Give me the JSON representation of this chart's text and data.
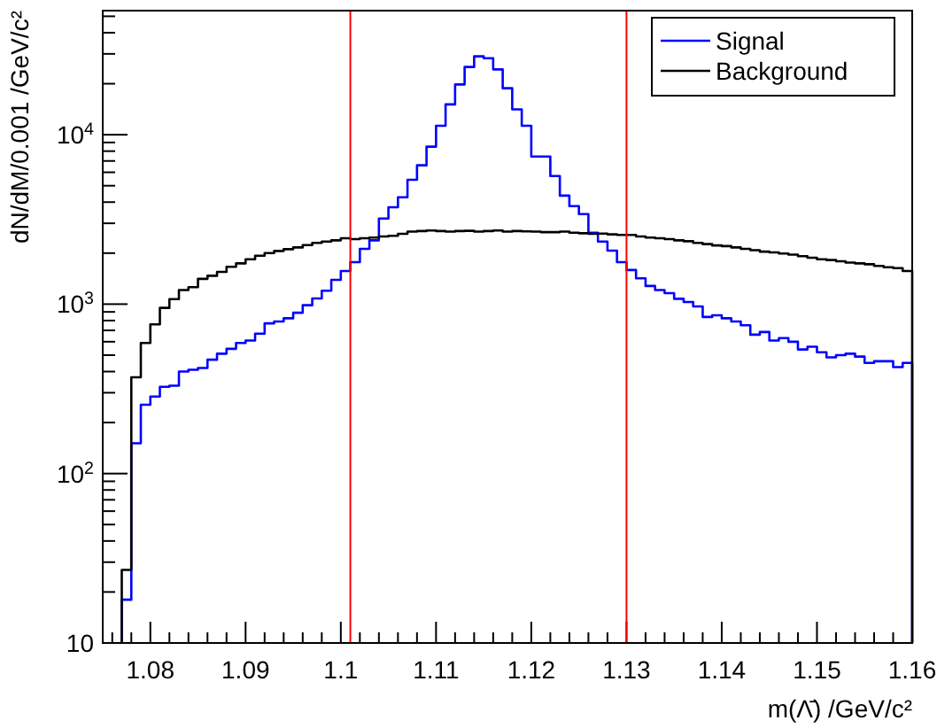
{
  "chart_data": {
    "type": "histogram",
    "xlabel": "m(Λ̄) /GeV/c²",
    "ylabel": "dN/dM/0.001 /GeV/c²",
    "bins": [
      1.077,
      1.078,
      1.079,
      1.08,
      1.081,
      1.082,
      1.083,
      1.084,
      1.085,
      1.086,
      1.087,
      1.088,
      1.089,
      1.09,
      1.091,
      1.092,
      1.093,
      1.094,
      1.095,
      1.096,
      1.097,
      1.098,
      1.099,
      1.1,
      1.101,
      1.102,
      1.103,
      1.104,
      1.105,
      1.106,
      1.107,
      1.108,
      1.109,
      1.11,
      1.111,
      1.112,
      1.113,
      1.114,
      1.115,
      1.116,
      1.117,
      1.118,
      1.119,
      1.12,
      1.121,
      1.122,
      1.123,
      1.124,
      1.125,
      1.126,
      1.127,
      1.128,
      1.129,
      1.13,
      1.131,
      1.132,
      1.133,
      1.134,
      1.135,
      1.136,
      1.137,
      1.138,
      1.139,
      1.14,
      1.141,
      1.142,
      1.143,
      1.144,
      1.145,
      1.146,
      1.147,
      1.148,
      1.149,
      1.15,
      1.151,
      1.152,
      1.153,
      1.154,
      1.155,
      1.156,
      1.157,
      1.158,
      1.159,
      1.16
    ],
    "series": [
      {
        "name": "Signal",
        "color": "#0000ff",
        "values": [
          18,
          151,
          255,
          285,
          325,
          330,
          400,
          410,
          420,
          470,
          510,
          545,
          590,
          610,
          670,
          770,
          790,
          825,
          890,
          985,
          1080,
          1200,
          1390,
          1570,
          1770,
          2120,
          2380,
          3200,
          3730,
          4270,
          5420,
          6600,
          8500,
          11300,
          15100,
          19800,
          25100,
          29000,
          28300,
          24300,
          18800,
          14100,
          11300,
          7430,
          7430,
          5700,
          4370,
          3790,
          3400,
          2640,
          2340,
          2070,
          1770,
          1590,
          1420,
          1280,
          1210,
          1160,
          1075,
          1030,
          970,
          840,
          860,
          825,
          790,
          750,
          660,
          685,
          610,
          630,
          600,
          540,
          560,
          520,
          485,
          500,
          510,
          490,
          450,
          460,
          460,
          425,
          450
        ]
      },
      {
        "name": "Background",
        "color": "#000000",
        "values": [
          27,
          370,
          590,
          760,
          950,
          1070,
          1210,
          1260,
          1410,
          1470,
          1550,
          1660,
          1740,
          1840,
          1930,
          2000,
          2060,
          2110,
          2160,
          2230,
          2300,
          2340,
          2380,
          2450,
          2420,
          2450,
          2470,
          2510,
          2530,
          2600,
          2680,
          2700,
          2720,
          2700,
          2680,
          2700,
          2710,
          2680,
          2700,
          2720,
          2680,
          2700,
          2690,
          2680,
          2660,
          2660,
          2680,
          2640,
          2620,
          2600,
          2610,
          2580,
          2560,
          2560,
          2510,
          2470,
          2450,
          2420,
          2380,
          2350,
          2300,
          2260,
          2220,
          2200,
          2160,
          2120,
          2080,
          2040,
          2020,
          1990,
          1960,
          1920,
          1880,
          1840,
          1820,
          1790,
          1760,
          1740,
          1720,
          1680,
          1650,
          1630,
          1570
        ]
      }
    ],
    "log": "y",
    "xlim": [
      1.075,
      1.16
    ],
    "xticks": [
      {
        "value": 1.076,
        "label": null
      },
      {
        "value": 1.078,
        "label": null
      },
      1.08,
      {
        "value": 1.082,
        "label": null
      },
      {
        "value": 1.084,
        "label": null
      },
      {
        "value": 1.086,
        "label": null
      },
      {
        "value": 1.088,
        "label": null
      },
      1.09,
      {
        "value": 1.092,
        "label": null
      },
      {
        "value": 1.094,
        "label": null
      },
      {
        "value": 1.096,
        "label": null
      },
      {
        "value": 1.098,
        "label": null
      },
      1.1,
      {
        "value": 1.102,
        "label": null
      },
      {
        "value": 1.104,
        "label": null
      },
      {
        "value": 1.106,
        "label": null
      },
      {
        "value": 1.108,
        "label": null
      },
      1.11,
      {
        "value": 1.112,
        "label": null
      },
      {
        "value": 1.114,
        "label": null
      },
      {
        "value": 1.116,
        "label": null
      },
      {
        "value": 1.118,
        "label": null
      },
      1.12,
      {
        "value": 1.122,
        "label": null
      },
      {
        "value": 1.124,
        "label": null
      },
      {
        "value": 1.126,
        "label": null
      },
      {
        "value": 1.128,
        "label": null
      },
      1.13,
      {
        "value": 1.132,
        "label": null
      },
      {
        "value": 1.134,
        "label": null
      },
      {
        "value": 1.136,
        "label": null
      },
      {
        "value": 1.138,
        "label": null
      },
      1.14,
      {
        "value": 1.142,
        "label": null
      },
      {
        "value": 1.144,
        "label": null
      },
      {
        "value": 1.146,
        "label": null
      },
      {
        "value": 1.148,
        "label": null
      },
      1.15,
      {
        "value": 1.152,
        "label": null
      },
      {
        "value": 1.154,
        "label": null
      },
      {
        "value": 1.156,
        "label": null
      },
      {
        "value": 1.158,
        "label": null
      },
      1.16
    ],
    "ylim": [
      10,
      54000
    ],
    "yticks": [
      10,
      {
        "value": 20,
        "label": null
      },
      {
        "value": 30,
        "label": null
      },
      {
        "value": 40,
        "label": null
      },
      {
        "value": 50,
        "label": null
      },
      {
        "value": 60,
        "label": null
      },
      {
        "value": 70,
        "label": null
      },
      {
        "value": 80,
        "label": null
      },
      {
        "value": 90,
        "label": null
      },
      {
        "value": 100,
        "label": "10$^{2}$"
      },
      {
        "value": 200,
        "label": null
      },
      {
        "value": 300,
        "label": null
      },
      {
        "value": 400,
        "label": null
      },
      {
        "value": 500,
        "label": null
      },
      {
        "value": 600,
        "label": null
      },
      {
        "value": 700,
        "label": null
      },
      {
        "value": 800,
        "label": null
      },
      {
        "value": 900,
        "label": null
      },
      {
        "value": 1000,
        "label": "10$^{3}$"
      },
      {
        "value": 2000,
        "label": null
      },
      {
        "value": 3000,
        "label": null
      },
      {
        "value": 4000,
        "label": null
      },
      {
        "value": 5000,
        "label": null
      },
      {
        "value": 6000,
        "label": null
      },
      {
        "value": 7000,
        "label": null
      },
      {
        "value": 8000,
        "label": null
      },
      {
        "value": 9000,
        "label": null
      },
      {
        "value": 10000,
        "label": "10$^{4}$"
      },
      {
        "value": 20000,
        "label": null
      },
      {
        "value": 30000,
        "label": null
      },
      {
        "value": 40000,
        "label": null
      },
      {
        "value": 50000,
        "label": null
      }
    ],
    "ref_lines": [
      {
        "axis": "x",
        "value": 1.101,
        "color": "#ff0000"
      },
      {
        "axis": "x",
        "value": 1.13,
        "color": "#ff0000"
      }
    ],
    "legend": "top right",
    "grid": false
  }
}
